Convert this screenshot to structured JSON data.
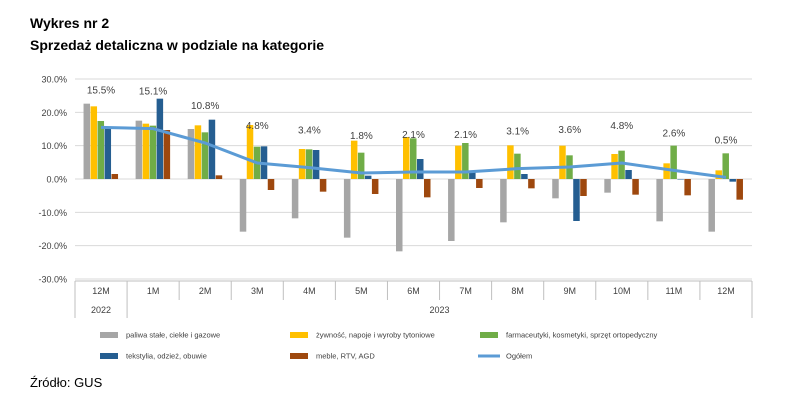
{
  "header": {
    "title": "Wykres nr 2",
    "subtitle": "Sprzedaż detaliczna w podziale na kategorie"
  },
  "footer": {
    "source": "Źródło: GUS"
  },
  "chart_data": {
    "type": "bar",
    "categories": [
      "12M",
      "1M",
      "2M",
      "3M",
      "4M",
      "5M",
      "6M",
      "7M",
      "8M",
      "9M",
      "10M",
      "11M",
      "12M"
    ],
    "year_groups": [
      {
        "label": "2022",
        "span": 1
      },
      {
        "label": "2023",
        "span": 12
      }
    ],
    "ylim": [
      -30,
      30
    ],
    "yticks": [
      "30.0%",
      "20.0%",
      "10.0%",
      "0.0%",
      "-10.0%",
      "-20.0%",
      "-30.0%"
    ],
    "ytick_values": [
      30,
      20,
      10,
      0,
      -10,
      -20,
      -30
    ],
    "grid": true,
    "legend_position": "bottom",
    "series": [
      {
        "name": "paliwa stałe, ciekłe i gazowe",
        "kind": "bar",
        "color": "#a6a6a6",
        "values": [
          22.6,
          17.5,
          15.0,
          -15.8,
          -11.8,
          -17.6,
          -21.7,
          -18.6,
          -13.0,
          -5.8,
          -4.1,
          -12.7,
          -15.8
        ]
      },
      {
        "name": "żywność, napoje i wyroby tytoniowe",
        "kind": "bar",
        "color": "#ffc000",
        "values": [
          21.8,
          16.6,
          16.1,
          16.2,
          9.0,
          11.5,
          12.6,
          10.0,
          10.1,
          10.0,
          7.5,
          4.7,
          2.6
        ]
      },
      {
        "name": "farmaceutyki, kosmetyki, sprzęt ortopedyczny",
        "kind": "bar",
        "color": "#70ad47",
        "values": [
          17.4,
          16.0,
          14.0,
          9.7,
          8.9,
          7.9,
          12.2,
          10.8,
          7.6,
          7.1,
          8.5,
          10.0,
          7.7
        ]
      },
      {
        "name": "tekstylia, odzież, obuwie",
        "kind": "bar",
        "color": "#255e91",
        "values": [
          15.6,
          24.1,
          17.8,
          9.8,
          8.7,
          1.0,
          6.0,
          2.0,
          1.5,
          -12.6,
          2.7,
          0.0,
          -0.8
        ]
      },
      {
        "name": "meble, RTV, AGD",
        "kind": "bar",
        "color": "#9e480e",
        "values": [
          1.5,
          14.7,
          1.1,
          -3.3,
          -3.8,
          -4.5,
          -5.5,
          -2.7,
          -2.8,
          -5.1,
          -4.7,
          -4.9,
          -6.2
        ]
      },
      {
        "name": "Ogółem",
        "kind": "line",
        "color": "#5b9bd5",
        "values": [
          15.5,
          15.1,
          10.8,
          4.8,
          3.4,
          1.8,
          2.1,
          2.1,
          3.1,
          3.6,
          4.8,
          2.6,
          0.5
        ],
        "labels": [
          "15.5%",
          "15.1%",
          "10.8%",
          "4.8%",
          "3.4%",
          "1.8%",
          "2.1%",
          "2.1%",
          "3.1%",
          "3.6%",
          "4.8%",
          "2.6%",
          "0.5%"
        ]
      }
    ]
  }
}
